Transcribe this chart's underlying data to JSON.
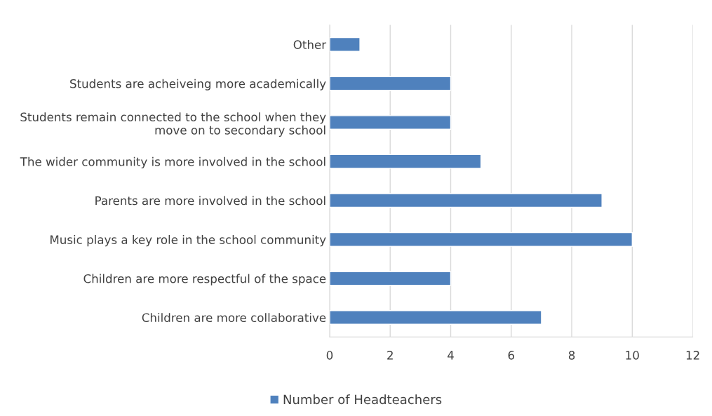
{
  "chart_data": {
    "type": "bar",
    "orientation": "horizontal",
    "categories": [
      "Other",
      "Students are acheiveing more academically",
      "Students remain connected to the school when they\nmove on to secondary school",
      "The wider community is more involved in the school",
      "Parents are more involved in the school",
      "Music plays a key role in the school community",
      "Children are more respectful of the space",
      "Children are more collaborative"
    ],
    "series": [
      {
        "name": "Number of Headteachers",
        "color": "#4f81bd",
        "values": [
          1,
          4,
          4,
          5,
          9,
          10,
          4,
          7
        ]
      }
    ],
    "xlim": [
      0,
      12
    ],
    "xticks": [
      0,
      2,
      4,
      6,
      8,
      10,
      12
    ],
    "grid": "x",
    "legend": "bottom"
  }
}
